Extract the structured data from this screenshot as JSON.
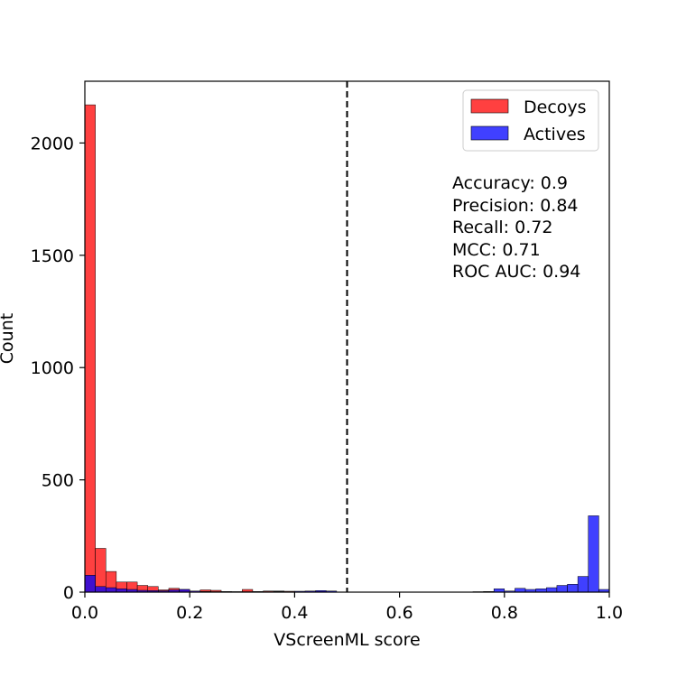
{
  "chart_data": {
    "type": "histogram",
    "xlabel": "VScreenML score",
    "ylabel": "Count",
    "xlim": [
      0.0,
      1.0
    ],
    "ylim": [
      0,
      2275
    ],
    "x_ticks": [
      0.0,
      0.2,
      0.4,
      0.6,
      0.8,
      1.0
    ],
    "x_tick_labels": [
      "0.0",
      "0.2",
      "0.4",
      "0.6",
      "0.8",
      "1.0"
    ],
    "y_ticks": [
      0,
      500,
      1000,
      1500,
      2000
    ],
    "y_tick_labels": [
      "0",
      "500",
      "1000",
      "1500",
      "2000"
    ],
    "bin_width": 0.02,
    "threshold": 0.5,
    "grid": false,
    "legend_position": "top-right",
    "series": [
      {
        "name": "Decoys",
        "color": "#ff0000",
        "values": [
          2170,
          195,
          92,
          45,
          45,
          30,
          25,
          10,
          17,
          12,
          5,
          10,
          8,
          3,
          2,
          12,
          2,
          5,
          5,
          4,
          2,
          4,
          4,
          2,
          1,
          1,
          0,
          0,
          0,
          0,
          0,
          0,
          0,
          0,
          0,
          1,
          0,
          0,
          0,
          0,
          0,
          0,
          0,
          0,
          0,
          0,
          0,
          0,
          0,
          0
        ]
      },
      {
        "name": "Actives",
        "color": "#0000ff",
        "values": [
          75,
          25,
          20,
          15,
          12,
          8,
          7,
          6,
          10,
          12,
          5,
          3,
          2,
          3,
          2,
          2,
          3,
          2,
          3,
          2,
          4,
          5,
          7,
          5,
          1,
          0,
          0,
          0,
          0,
          0,
          1,
          0,
          0,
          0,
          0,
          1,
          1,
          2,
          3,
          15,
          5,
          17,
          12,
          15,
          20,
          30,
          35,
          70,
          340,
          12
        ]
      }
    ],
    "annotations": [
      "Accuracy: 0.9",
      "Precision: 0.84",
      "Recall: 0.72",
      "MCC: 0.71",
      "ROC AUC: 0.94"
    ]
  }
}
